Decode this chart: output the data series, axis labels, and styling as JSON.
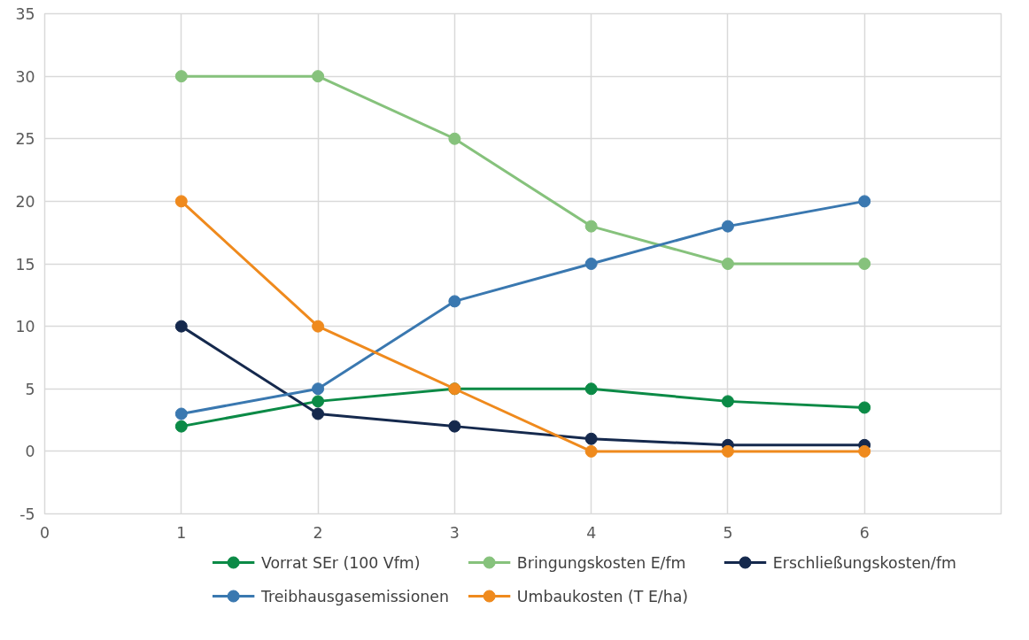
{
  "chart_data": {
    "type": "line",
    "x": [
      1,
      2,
      3,
      4,
      5,
      6
    ],
    "series": [
      {
        "name": "Vorrat SEr (100 Vfm)",
        "color": "#0b8a46",
        "values": [
          2,
          4,
          5,
          5,
          4,
          3.5
        ]
      },
      {
        "name": "Bringungskosten E/fm",
        "color": "#86c27c",
        "values": [
          30,
          30,
          25,
          18,
          15,
          15
        ]
      },
      {
        "name": "Erschließungskosten/fm",
        "color": "#15294d",
        "values": [
          10,
          3,
          2,
          1,
          0.5,
          0.5
        ]
      },
      {
        "name": "Treibhausgasemissionen",
        "color": "#3a78b0",
        "values": [
          3,
          5,
          12,
          15,
          18,
          20
        ]
      },
      {
        "name": "Umbaukosten (T E/ha)",
        "color": "#ef8a1d",
        "values": [
          20,
          10,
          5,
          0,
          0,
          0
        ]
      }
    ],
    "xlim": [
      0,
      7
    ],
    "xticks": [
      0,
      1,
      2,
      3,
      4,
      5,
      6
    ],
    "ylim": [
      -5,
      35
    ],
    "yticks": [
      -5,
      0,
      5,
      10,
      15,
      20,
      25,
      30,
      35
    ],
    "grid": true,
    "legend": "bottom",
    "marker": "circle",
    "line_style": "solid"
  }
}
